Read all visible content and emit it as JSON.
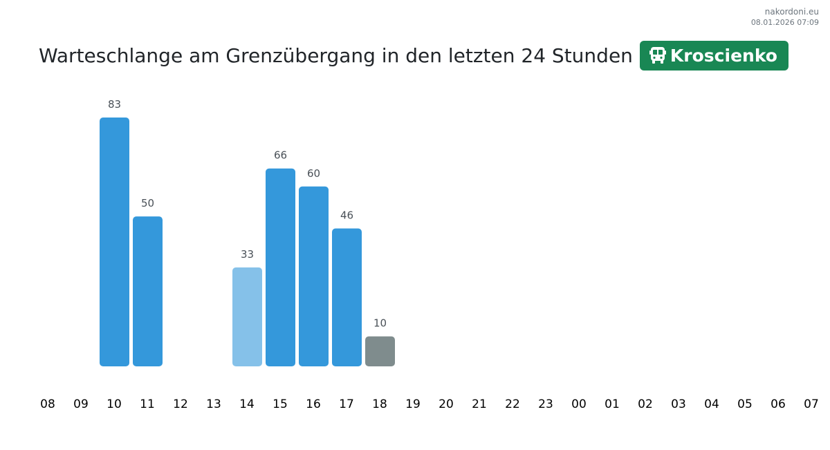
{
  "meta": {
    "site": "nakordoni.eu",
    "timestamp": "08.01.2026 07:09"
  },
  "header": {
    "title": "Warteschlange am Grenzübergang in den letzten 24 Stunden",
    "crossing": "Kroscienko",
    "crossing_icon": "bus-icon",
    "badge_color": "#198754"
  },
  "chart_data": {
    "type": "bar",
    "categories": [
      "08",
      "09",
      "10",
      "11",
      "12",
      "13",
      "14",
      "15",
      "16",
      "17",
      "18",
      "19",
      "20",
      "21",
      "22",
      "23",
      "00",
      "01",
      "02",
      "03",
      "04",
      "05",
      "06",
      "07"
    ],
    "values": [
      null,
      null,
      83,
      50,
      null,
      null,
      33,
      66,
      60,
      46,
      10,
      null,
      null,
      null,
      null,
      null,
      null,
      null,
      null,
      null,
      null,
      null,
      null,
      null
    ],
    "colors": [
      null,
      null,
      "#3498db",
      "#3498db",
      null,
      null,
      "#85c1e9",
      "#3498db",
      "#3498db",
      "#3498db",
      "#7f8c8d",
      null,
      null,
      null,
      null,
      null,
      null,
      null,
      null,
      null,
      null,
      null,
      null,
      null
    ],
    "data_labels": true,
    "grid": false,
    "legend": "none"
  }
}
